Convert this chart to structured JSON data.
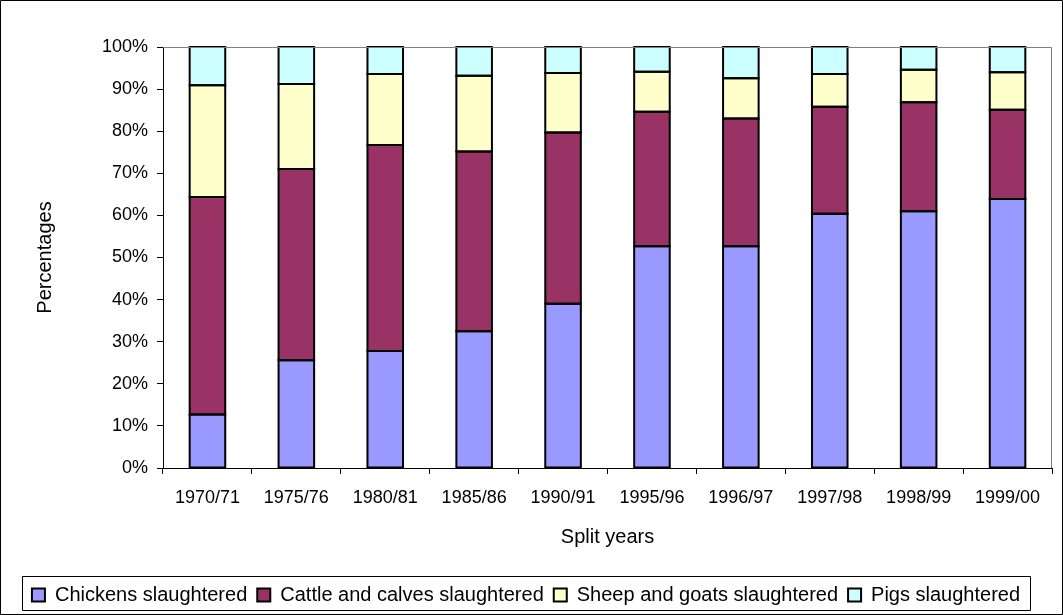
{
  "chart_data": {
    "type": "bar",
    "stacked": true,
    "categories": [
      "1970/71",
      "1975/76",
      "1980/81",
      "1985/86",
      "1990/91",
      "1995/96",
      "1996/97",
      "1997/98",
      "1998/99",
      "1999/00"
    ],
    "series": [
      {
        "name": "Chickens slaughtered",
        "color": "#9999ff",
        "values": [
          12.7,
          25.6,
          27.8,
          32.5,
          39.0,
          52.7,
          52.7,
          60.4,
          61.0,
          63.9
        ]
      },
      {
        "name": "Cattle and calves slaughtered",
        "color": "#993366",
        "values": [
          51.7,
          45.4,
          48.9,
          42.7,
          40.7,
          31.9,
          30.3,
          25.4,
          25.9,
          21.2
        ]
      },
      {
        "name": "Sheep and goats slaughtered",
        "color": "#ffffcc",
        "values": [
          26.5,
          20.2,
          16.9,
          18.0,
          14.1,
          9.5,
          9.6,
          7.8,
          7.7,
          8.9
        ]
      },
      {
        "name": "Pigs slaughtered",
        "color": "#ccffff",
        "values": [
          9.1,
          8.8,
          6.4,
          6.8,
          6.2,
          5.9,
          7.4,
          6.4,
          5.4,
          6.0
        ]
      }
    ],
    "ylim": [
      0,
      100
    ],
    "yticks": [
      {
        "value": 0,
        "label": "0%"
      },
      {
        "value": 10,
        "label": "10%"
      },
      {
        "value": 20,
        "label": "20%"
      },
      {
        "value": 30,
        "label": "30%"
      },
      {
        "value": 40,
        "label": "40%"
      },
      {
        "value": 50,
        "label": "50%"
      },
      {
        "value": 60,
        "label": "60%"
      },
      {
        "value": 70,
        "label": "70%"
      },
      {
        "value": 80,
        "label": "80%"
      },
      {
        "value": 90,
        "label": "90%"
      },
      {
        "value": 100,
        "label": "100%"
      }
    ],
    "xlabel": "Split years",
    "ylabel": "Percentages",
    "legend": "bottom"
  }
}
